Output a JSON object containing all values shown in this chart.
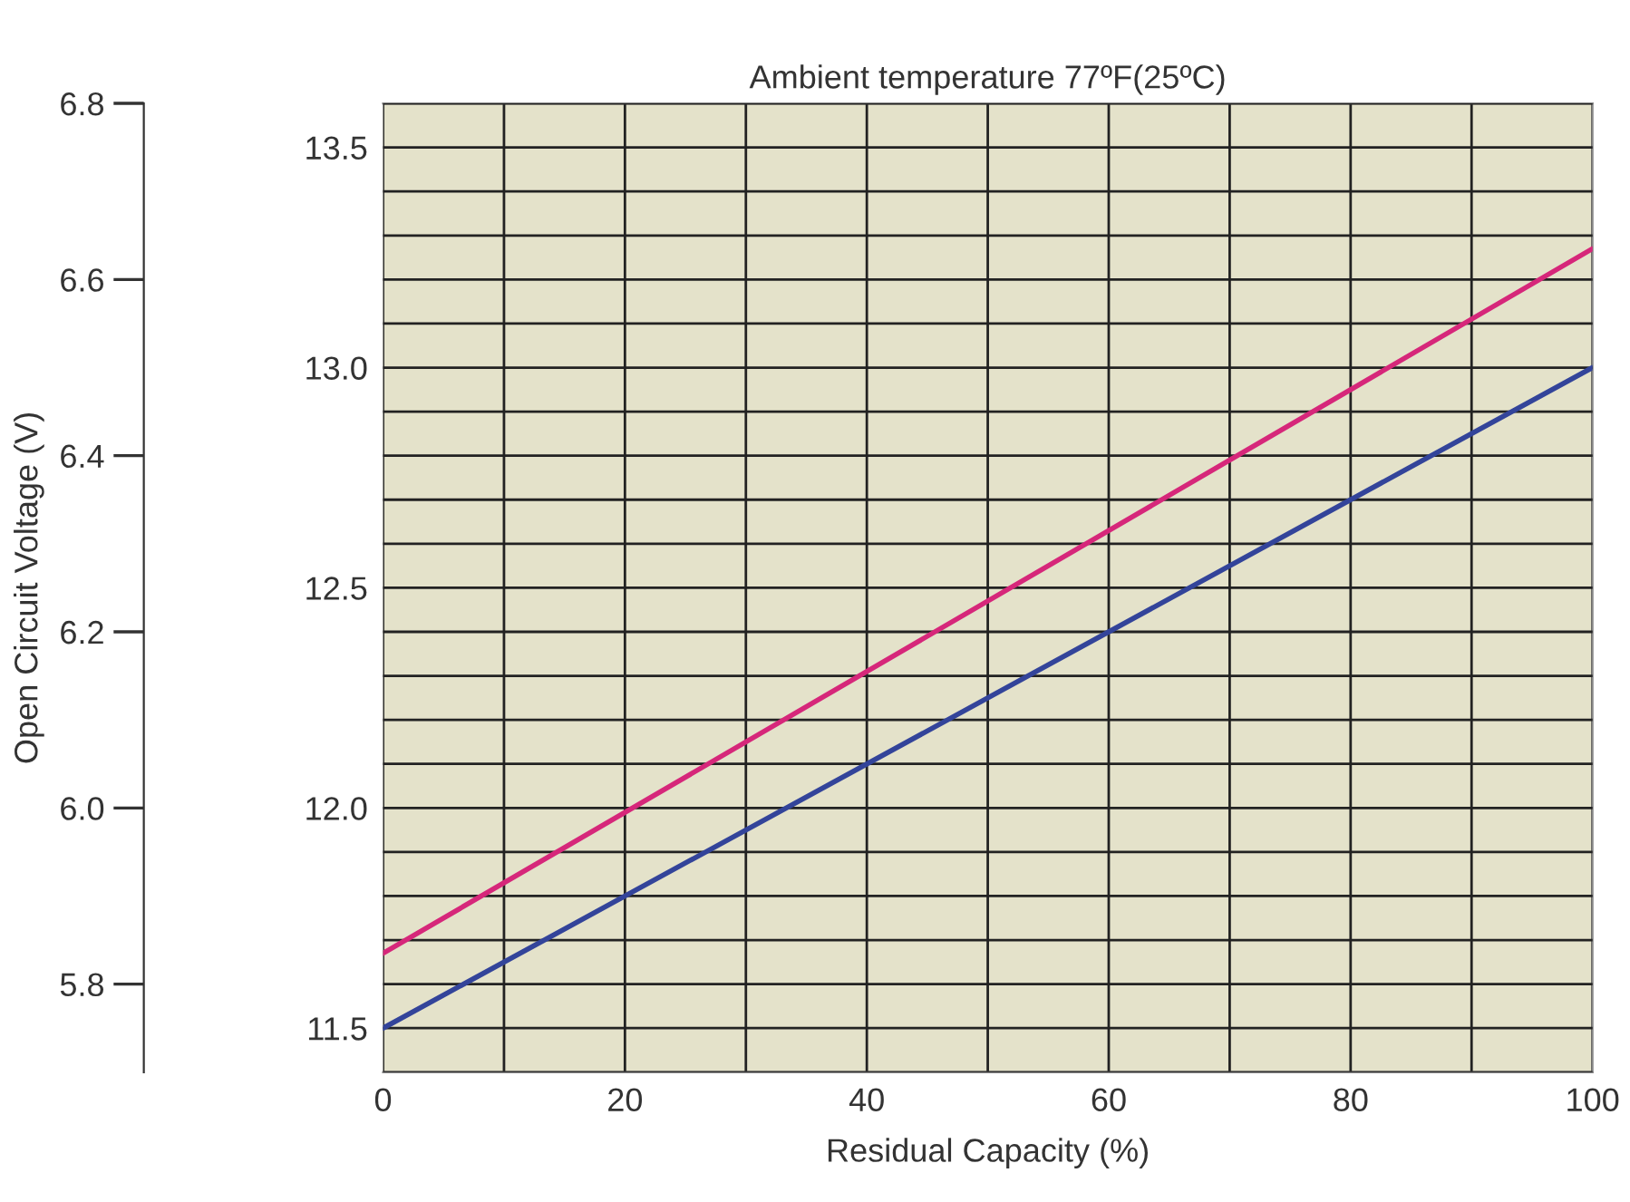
{
  "chart_data": {
    "type": "line",
    "title": "Ambient temperature 77ºF(25ºC)",
    "xlabel": "Residual Capacity (%)",
    "ylabel": "Open Circuit Voltage (V)",
    "x": [
      0,
      100
    ],
    "series": [
      {
        "color": "#d6277a",
        "values": [
          11.67,
          13.27
        ],
        "axis": "y2"
      },
      {
        "color": "#33449a",
        "values": [
          11.5,
          13.0
        ],
        "axis": "y2"
      }
    ],
    "xlim": [
      0,
      100
    ],
    "xticks": [
      0,
      {
        "value": 10,
        "label": null
      },
      20,
      {
        "value": 30,
        "label": null
      },
      40,
      {
        "value": 50,
        "label": null
      },
      60,
      {
        "value": 70,
        "label": null
      },
      80,
      {
        "value": 90,
        "label": null
      },
      100
    ],
    "ylim": [
      5.7,
      6.8
    ],
    "yticks": [
      5.8,
      {
        "value": 6.0,
        "label": "6.0"
      },
      6.2,
      6.4,
      6.6,
      6.8
    ],
    "y2lim": [
      11.4,
      13.6
    ],
    "y2ticks": [
      {
        "value": 11.4,
        "label": null
      },
      {
        "value": 11.5,
        "label": "11.5"
      },
      {
        "value": 11.6,
        "label": null
      },
      {
        "value": 11.7,
        "label": null
      },
      {
        "value": 11.8,
        "label": null
      },
      {
        "value": 11.9,
        "label": null
      },
      {
        "value": 12.0,
        "label": "12.0"
      },
      {
        "value": 12.1,
        "label": null
      },
      {
        "value": 12.2,
        "label": null
      },
      {
        "value": 12.3,
        "label": null
      },
      {
        "value": 12.4,
        "label": null
      },
      {
        "value": 12.5,
        "label": "12.5"
      },
      {
        "value": 12.6,
        "label": null
      },
      {
        "value": 12.7,
        "label": null
      },
      {
        "value": 12.8,
        "label": null
      },
      {
        "value": 12.9,
        "label": null
      },
      {
        "value": 13.0,
        "label": "13.0"
      },
      {
        "value": 13.1,
        "label": null
      },
      {
        "value": 13.2,
        "label": null
      },
      {
        "value": 13.3,
        "label": null
      },
      {
        "value": 13.4,
        "label": null
      },
      {
        "value": 13.5,
        "label": "13.5"
      },
      {
        "value": 13.6,
        "label": null
      }
    ],
    "grid": true,
    "marker": "none",
    "line_style": "solid"
  }
}
